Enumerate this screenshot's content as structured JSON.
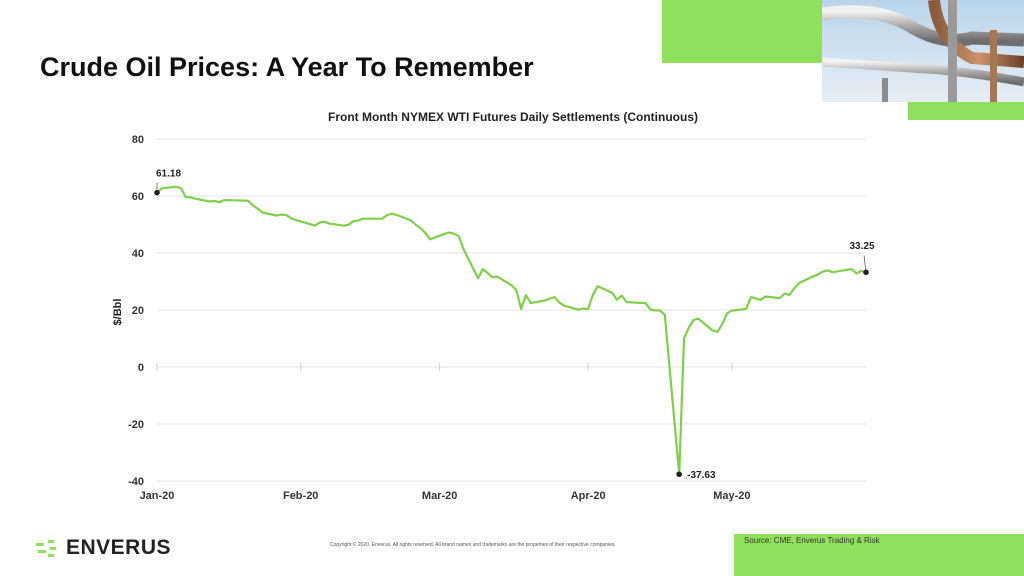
{
  "page": {
    "title": "Crude Oil Prices: A Year To Remember",
    "logo_text": "ENVERUS",
    "copyright": "Copyright © 2020, Enverus. All rights reserved. All brand names and trademarks are the properties of their respective companies.",
    "source": "Source: CME,  Enverus Trading & Risk"
  },
  "colors": {
    "accent_green": "#8fe05a",
    "series_line": "#7ed048",
    "gridline": "#e3e3e3"
  },
  "chart_data": {
    "type": "line",
    "title": "Front Month NYMEX WTI Futures Daily Settlements (Continuous)",
    "xlabel": "",
    "ylabel": "$/Bbl",
    "ylim": [
      -40,
      80
    ],
    "yticks": [
      80,
      60,
      40,
      20,
      0,
      -20,
      -40
    ],
    "xtick_labels": [
      "Jan-20",
      "Feb-20",
      "Mar-20",
      "Apr-20",
      "May-20"
    ],
    "xtick_dates": [
      "2020-01-02",
      "2020-02-01",
      "2020-03-01",
      "2020-04-01",
      "2020-05-01"
    ],
    "grid": true,
    "legend": "none",
    "series": [
      {
        "x": [
          "2020-01-02",
          "2020-01-03",
          "2020-01-06",
          "2020-01-07",
          "2020-01-08",
          "2020-01-09",
          "2020-01-10",
          "2020-01-13",
          "2020-01-14",
          "2020-01-15",
          "2020-01-16",
          "2020-01-17",
          "2020-01-21",
          "2020-01-22",
          "2020-01-23",
          "2020-01-24",
          "2020-01-27",
          "2020-01-28",
          "2020-01-29",
          "2020-01-30",
          "2020-01-31",
          "2020-02-03",
          "2020-02-04",
          "2020-02-05",
          "2020-02-06",
          "2020-02-07",
          "2020-02-10",
          "2020-02-11",
          "2020-02-12",
          "2020-02-13",
          "2020-02-14",
          "2020-02-18",
          "2020-02-19",
          "2020-02-20",
          "2020-02-21",
          "2020-02-24",
          "2020-02-25",
          "2020-02-26",
          "2020-02-27",
          "2020-02-28",
          "2020-03-02",
          "2020-03-03",
          "2020-03-04",
          "2020-03-05",
          "2020-03-06",
          "2020-03-09",
          "2020-03-10",
          "2020-03-11",
          "2020-03-12",
          "2020-03-13",
          "2020-03-16",
          "2020-03-17",
          "2020-03-18",
          "2020-03-19",
          "2020-03-20",
          "2020-03-23",
          "2020-03-24",
          "2020-03-25",
          "2020-03-26",
          "2020-03-27",
          "2020-03-30",
          "2020-03-31",
          "2020-04-01",
          "2020-04-02",
          "2020-04-03",
          "2020-04-06",
          "2020-04-07",
          "2020-04-08",
          "2020-04-09",
          "2020-04-13",
          "2020-04-14",
          "2020-04-15",
          "2020-04-16",
          "2020-04-17",
          "2020-04-20",
          "2020-04-21",
          "2020-04-22",
          "2020-04-23",
          "2020-04-24",
          "2020-04-27",
          "2020-04-28",
          "2020-04-29",
          "2020-04-30",
          "2020-05-01",
          "2020-05-04",
          "2020-05-05",
          "2020-05-06",
          "2020-05-07",
          "2020-05-08",
          "2020-05-11",
          "2020-05-12",
          "2020-05-13",
          "2020-05-14",
          "2020-05-15",
          "2020-05-18",
          "2020-05-19",
          "2020-05-20",
          "2020-05-21",
          "2020-05-22",
          "2020-05-26",
          "2020-05-27",
          "2020-05-28",
          "2020-05-29"
        ],
        "y": [
          61.18,
          62.7,
          63.27,
          62.7,
          59.6,
          59.56,
          59.04,
          58.08,
          58.23,
          57.81,
          58.52,
          58.54,
          58.34,
          56.74,
          55.59,
          54.19,
          53.14,
          53.48,
          53.33,
          52.14,
          51.56,
          50.11,
          49.61,
          50.75,
          50.95,
          50.32,
          49.57,
          49.94,
          51.17,
          51.42,
          52.05,
          52.05,
          53.29,
          53.78,
          53.38,
          51.43,
          49.9,
          48.73,
          47.09,
          44.76,
          46.75,
          47.18,
          46.78,
          45.9,
          41.28,
          31.13,
          34.36,
          32.98,
          31.5,
          31.73,
          28.7,
          26.95,
          20.37,
          25.22,
          22.43,
          23.36,
          24.01,
          24.49,
          22.6,
          21.51,
          20.09,
          20.48,
          20.31,
          25.32,
          28.34,
          26.08,
          23.63,
          25.09,
          22.76,
          22.41,
          20.11,
          19.87,
          19.87,
          18.27,
          -37.63,
          10.01,
          13.78,
          16.5,
          16.94,
          12.78,
          12.34,
          15.06,
          18.84,
          19.78,
          20.39,
          24.56,
          23.99,
          23.55,
          24.74,
          24.14,
          25.78,
          25.29,
          27.56,
          29.43,
          31.82,
          32.5,
          33.49,
          33.92,
          33.25,
          34.35,
          32.81,
          33.71,
          33.25
        ],
        "line_color": "#7ed048"
      }
    ],
    "annotations": [
      {
        "label": "61.18",
        "date": "2020-01-02",
        "value": 61.18
      },
      {
        "label": "-37.63",
        "date": "2020-04-20",
        "value": -37.63
      },
      {
        "label": "33.25",
        "date": "2020-05-29",
        "value": 33.25
      }
    ]
  }
}
